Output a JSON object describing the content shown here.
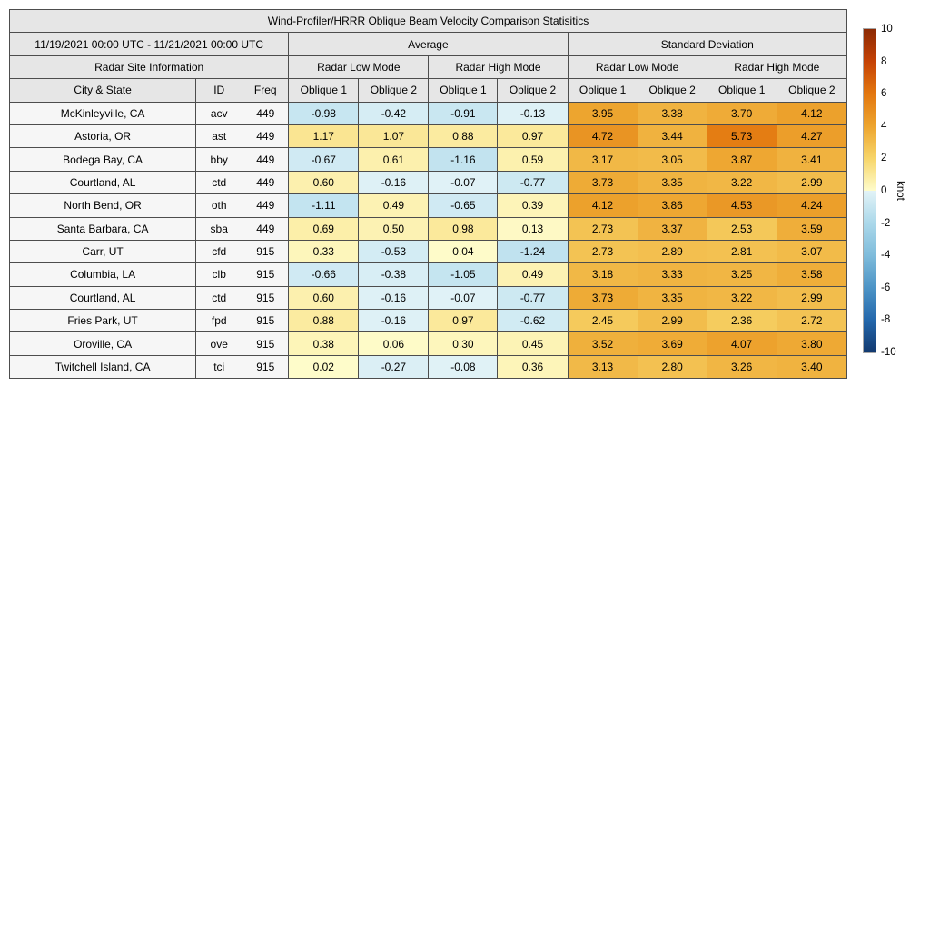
{
  "chart_data": {
    "type": "table",
    "title": "Wind-Profiler/HRRR Oblique Beam Velocity Comparison Statisitics",
    "date_range": "11/19/2021 00:00 UTC - 11/21/2021 00:00 UTC",
    "sections": {
      "site_info": "Radar Site Information",
      "average": "Average",
      "stddev": "Standard Deviation",
      "low_mode": "Radar Low Mode",
      "high_mode": "Radar High Mode"
    },
    "columns": {
      "city": "City & State",
      "id": "ID",
      "freq": "Freq",
      "oblique1": "Oblique 1",
      "oblique2": "Oblique 2"
    },
    "colorbar": {
      "label": "knot",
      "min": -10,
      "max": 10,
      "ticks": [
        10,
        8,
        6,
        4,
        2,
        0,
        -2,
        -4,
        -6,
        -8,
        -10
      ],
      "gradient_stops": [
        {
          "value": 10,
          "color": "#8C2A04"
        },
        {
          "value": 8,
          "color": "#C54205"
        },
        {
          "value": 6,
          "color": "#E3770F"
        },
        {
          "value": 4,
          "color": "#EDA42E"
        },
        {
          "value": 2,
          "color": "#F7D569"
        },
        {
          "value": 0.001,
          "color": "#FEFCCB"
        },
        {
          "value": -0.001,
          "color": "#E2F3F7"
        },
        {
          "value": -2,
          "color": "#ABD8EA"
        },
        {
          "value": -4,
          "color": "#7FBCDB"
        },
        {
          "value": -6,
          "color": "#4D94C6"
        },
        {
          "value": -8,
          "color": "#2468AC"
        },
        {
          "value": -10,
          "color": "#12396F"
        }
      ]
    },
    "rows": [
      {
        "city": "McKinleyville, CA",
        "id": "acv",
        "freq": "449",
        "avg_low": [
          -0.98,
          -0.42
        ],
        "avg_high": [
          -0.91,
          -0.13
        ],
        "sd_low": [
          3.95,
          3.38
        ],
        "sd_high": [
          3.7,
          4.12
        ]
      },
      {
        "city": "Astoria, OR",
        "id": "ast",
        "freq": "449",
        "avg_low": [
          1.17,
          1.07
        ],
        "avg_high": [
          0.88,
          0.97
        ],
        "sd_low": [
          4.72,
          3.44
        ],
        "sd_high": [
          5.73,
          4.27
        ]
      },
      {
        "city": "Bodega Bay, CA",
        "id": "bby",
        "freq": "449",
        "avg_low": [
          -0.67,
          0.61
        ],
        "avg_high": [
          -1.16,
          0.59
        ],
        "sd_low": [
          3.17,
          3.05
        ],
        "sd_high": [
          3.87,
          3.41
        ]
      },
      {
        "city": "Courtland, AL",
        "id": "ctd",
        "freq": "449",
        "avg_low": [
          0.6,
          -0.16
        ],
        "avg_high": [
          -0.07,
          -0.77
        ],
        "sd_low": [
          3.73,
          3.35
        ],
        "sd_high": [
          3.22,
          2.99
        ]
      },
      {
        "city": "North Bend, OR",
        "id": "oth",
        "freq": "449",
        "avg_low": [
          -1.11,
          0.49
        ],
        "avg_high": [
          -0.65,
          0.39
        ],
        "sd_low": [
          4.12,
          3.86
        ],
        "sd_high": [
          4.53,
          4.24
        ]
      },
      {
        "city": "Santa Barbara, CA",
        "id": "sba",
        "freq": "449",
        "avg_low": [
          0.69,
          0.5
        ],
        "avg_high": [
          0.98,
          0.13
        ],
        "sd_low": [
          2.73,
          3.37
        ],
        "sd_high": [
          2.53,
          3.59
        ]
      },
      {
        "city": "Carr, UT",
        "id": "cfd",
        "freq": "915",
        "avg_low": [
          0.33,
          -0.53
        ],
        "avg_high": [
          0.04,
          -1.24
        ],
        "sd_low": [
          2.73,
          2.89
        ],
        "sd_high": [
          2.81,
          3.07
        ]
      },
      {
        "city": "Columbia, LA",
        "id": "clb",
        "freq": "915",
        "avg_low": [
          -0.66,
          -0.38
        ],
        "avg_high": [
          -1.05,
          0.49
        ],
        "sd_low": [
          3.18,
          3.33
        ],
        "sd_high": [
          3.25,
          3.58
        ]
      },
      {
        "city": "Courtland, AL",
        "id": "ctd",
        "freq": "915",
        "avg_low": [
          0.6,
          -0.16
        ],
        "avg_high": [
          -0.07,
          -0.77
        ],
        "sd_low": [
          3.73,
          3.35
        ],
        "sd_high": [
          3.22,
          2.99
        ]
      },
      {
        "city": "Fries Park, UT",
        "id": "fpd",
        "freq": "915",
        "avg_low": [
          0.88,
          -0.16
        ],
        "avg_high": [
          0.97,
          -0.62
        ],
        "sd_low": [
          2.45,
          2.99
        ],
        "sd_high": [
          2.36,
          2.72
        ]
      },
      {
        "city": "Oroville, CA",
        "id": "ove",
        "freq": "915",
        "avg_low": [
          0.38,
          0.06
        ],
        "avg_high": [
          0.3,
          0.45
        ],
        "sd_low": [
          3.52,
          3.69
        ],
        "sd_high": [
          4.07,
          3.8
        ]
      },
      {
        "city": "Twitchell Island, CA",
        "id": "tci",
        "freq": "915",
        "avg_low": [
          0.02,
          -0.27
        ],
        "avg_high": [
          -0.08,
          0.36
        ],
        "sd_low": [
          3.13,
          2.8
        ],
        "sd_high": [
          3.26,
          3.4
        ]
      }
    ]
  }
}
